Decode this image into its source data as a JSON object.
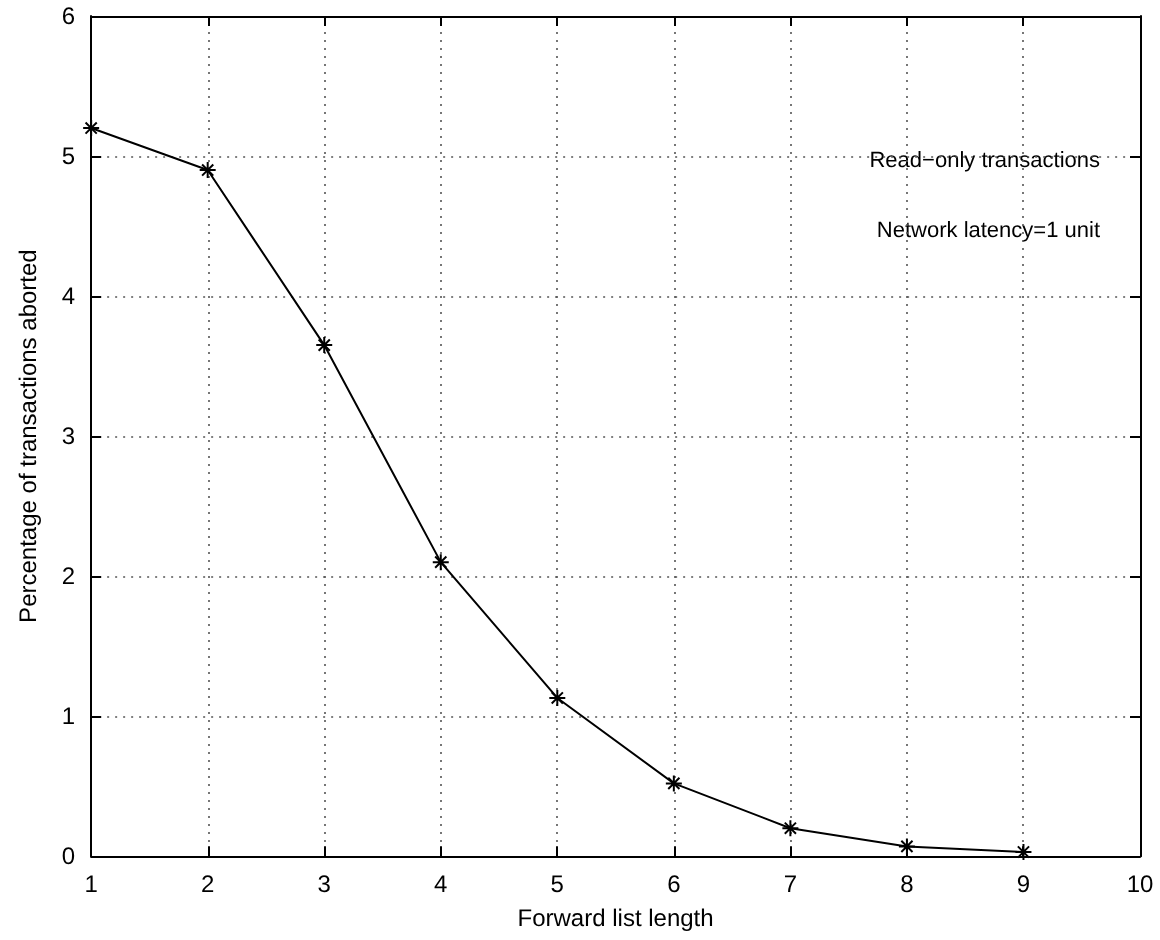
{
  "chart_data": {
    "type": "line",
    "xlabel": "Forward list length",
    "ylabel": "Percentage of transactions aborted",
    "annotations": [
      "Read−only transactions",
      "Network latency=1 unit"
    ],
    "x": [
      1,
      2,
      3,
      4,
      5,
      6,
      7,
      8,
      9
    ],
    "series": [
      {
        "color": "#000000",
        "values": [
          5.2,
          4.9,
          3.65,
          2.1,
          1.13,
          0.52,
          0.2,
          0.07,
          0.03
        ]
      }
    ],
    "xlim": [
      1,
      10
    ],
    "xticks": [
      1,
      2,
      3,
      4,
      5,
      6,
      7,
      8,
      9,
      10
    ],
    "ylim": [
      0,
      6
    ],
    "yticks": [
      0,
      1,
      2,
      3,
      4,
      5,
      6
    ],
    "grid": true,
    "marker": "cross",
    "line_style": "solid"
  }
}
